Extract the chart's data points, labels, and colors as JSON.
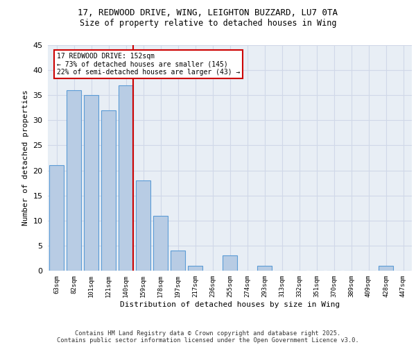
{
  "title_line1": "17, REDWOOD DRIVE, WING, LEIGHTON BUZZARD, LU7 0TA",
  "title_line2": "Size of property relative to detached houses in Wing",
  "xlabel": "Distribution of detached houses by size in Wing",
  "ylabel": "Number of detached properties",
  "categories": [
    "63sqm",
    "82sqm",
    "101sqm",
    "121sqm",
    "140sqm",
    "159sqm",
    "178sqm",
    "197sqm",
    "217sqm",
    "236sqm",
    "255sqm",
    "274sqm",
    "293sqm",
    "313sqm",
    "332sqm",
    "351sqm",
    "370sqm",
    "389sqm",
    "409sqm",
    "428sqm",
    "447sqm"
  ],
  "values": [
    21,
    36,
    35,
    32,
    37,
    18,
    11,
    4,
    1,
    0,
    3,
    0,
    1,
    0,
    0,
    0,
    0,
    0,
    0,
    1,
    0
  ],
  "bar_color": "#b8cce4",
  "bar_edge_color": "#5b9bd5",
  "bar_edge_width": 0.8,
  "grid_color": "#d0d8e8",
  "bg_color": "#e8eef5",
  "vline_x": 4.43,
  "vline_color": "#cc0000",
  "annotation_text": "17 REDWOOD DRIVE: 152sqm\n← 73% of detached houses are smaller (145)\n22% of semi-detached houses are larger (43) →",
  "annotation_box_color": "#cc0000",
  "ylim": [
    0,
    45
  ],
  "yticks": [
    0,
    5,
    10,
    15,
    20,
    25,
    30,
    35,
    40,
    45
  ],
  "footer_line1": "Contains HM Land Registry data © Crown copyright and database right 2025.",
  "footer_line2": "Contains public sector information licensed under the Open Government Licence v3.0."
}
